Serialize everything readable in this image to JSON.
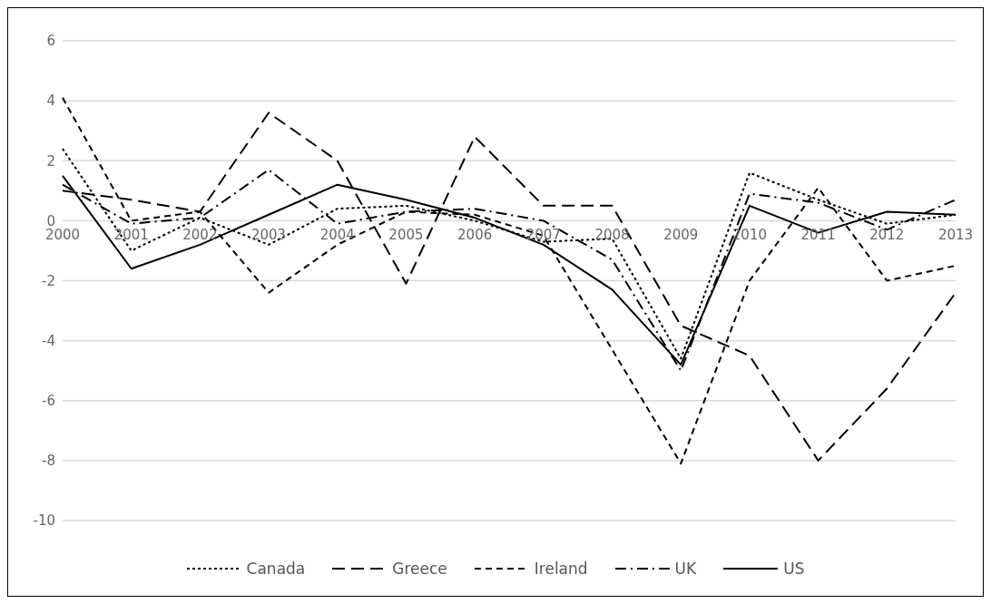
{
  "chart_data": {
    "type": "line",
    "categories": [
      "2000",
      "2001",
      "2002",
      "2003",
      "2004",
      "2005",
      "2006",
      "2007",
      "2008",
      "2009",
      "2010",
      "2011",
      "2012",
      "2013"
    ],
    "series": [
      {
        "name": "Canada",
        "color": "#000000",
        "line_style": "dotted",
        "values": [
          2.4,
          -1.0,
          0.1,
          -0.8,
          0.4,
          0.5,
          0.0,
          -0.7,
          -0.6,
          -4.6,
          1.6,
          0.7,
          -0.1,
          0.2
        ]
      },
      {
        "name": "Greece",
        "color": "#000000",
        "line_style": "longdash",
        "values": [
          1.0,
          0.7,
          0.3,
          3.6,
          2.0,
          -2.1,
          2.8,
          0.5,
          0.5,
          -3.5,
          -4.5,
          -8.0,
          -5.6,
          -2.4
        ]
      },
      {
        "name": "Ireland",
        "color": "#000000",
        "line_style": "dashed",
        "values": [
          4.1,
          0.0,
          0.3,
          -2.4,
          -0.8,
          0.3,
          0.2,
          -0.5,
          -4.3,
          -8.1,
          -2.0,
          1.1,
          -2.0,
          -1.5
        ]
      },
      {
        "name": "UK",
        "color": "#000000",
        "line_style": "dashdot",
        "values": [
          1.2,
          -0.1,
          0.1,
          1.7,
          -0.1,
          0.3,
          0.4,
          0.0,
          -1.3,
          -5.0,
          0.9,
          0.6,
          -0.3,
          0.7
        ]
      },
      {
        "name": "US",
        "color": "#000000",
        "line_style": "solid",
        "values": [
          1.5,
          -1.6,
          -0.8,
          0.2,
          1.2,
          0.7,
          0.1,
          -0.8,
          -2.3,
          -4.8,
          0.5,
          -0.4,
          0.3,
          0.2
        ]
      }
    ],
    "ylim": [
      -10,
      6
    ],
    "yticks": [
      -10,
      -8,
      -6,
      -4,
      -2,
      0,
      2,
      4,
      6
    ],
    "grid": "y",
    "legend": "bottom",
    "marker": "none"
  }
}
